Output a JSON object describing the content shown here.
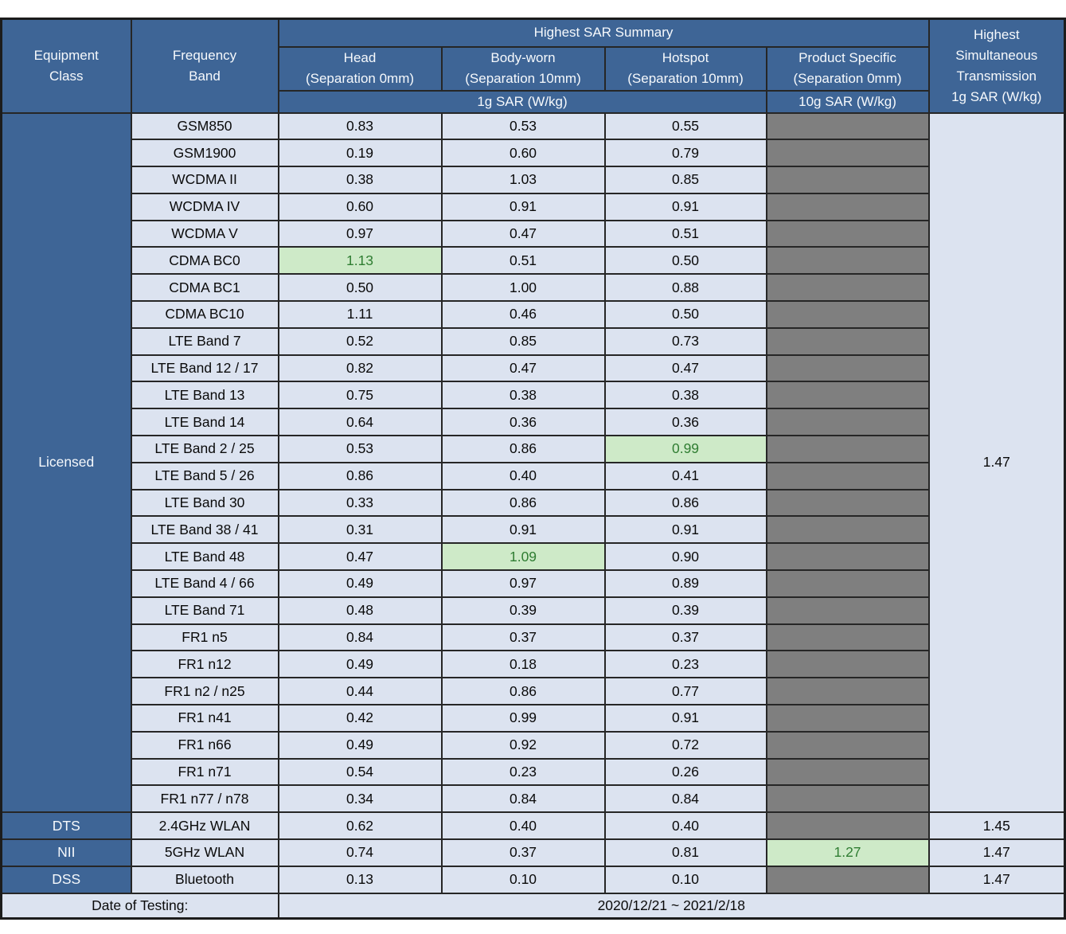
{
  "colors": {
    "header_blue": "#3E6596",
    "cell_light_blue": "#DCE3F0",
    "na_gray": "#7F7F7F",
    "highlight_green_bg": "#CEEAC8",
    "highlight_green_text": "#2F7D32"
  },
  "header": {
    "equipment_class": "Equipment\nClass",
    "frequency_band": "Frequency\nBand",
    "sar_summary": "Highest SAR Summary",
    "columns": [
      {
        "title": "Head",
        "separation": "(Separation 0mm)"
      },
      {
        "title": "Body-worn",
        "separation": "(Separation 10mm)"
      },
      {
        "title": "Hotspot",
        "separation": "(Separation 10mm)"
      },
      {
        "title": "Product Specific",
        "separation": "(Separation 0mm)"
      }
    ],
    "unit_1g": "1g SAR (W/kg)",
    "unit_10g": "10g SAR (W/kg)",
    "simultaneous_lines": [
      "Highest",
      "Simultaneous",
      "Transmission",
      "1g SAR (W/kg)"
    ]
  },
  "sections": [
    {
      "equipment_class": "Licensed",
      "simultaneous_sar": "1.47",
      "rows": [
        {
          "band": "GSM850",
          "values": {
            "head": "0.83",
            "body": "0.53",
            "hotspot": "0.55",
            "product": ""
          },
          "highlight": null
        },
        {
          "band": "GSM1900",
          "values": {
            "head": "0.19",
            "body": "0.60",
            "hotspot": "0.79",
            "product": ""
          },
          "highlight": null
        },
        {
          "band": "WCDMA II",
          "values": {
            "head": "0.38",
            "body": "1.03",
            "hotspot": "0.85",
            "product": ""
          },
          "highlight": null
        },
        {
          "band": "WCDMA IV",
          "values": {
            "head": "0.60",
            "body": "0.91",
            "hotspot": "0.91",
            "product": ""
          },
          "highlight": null
        },
        {
          "band": "WCDMA V",
          "values": {
            "head": "0.97",
            "body": "0.47",
            "hotspot": "0.51",
            "product": ""
          },
          "highlight": null
        },
        {
          "band": "CDMA BC0",
          "values": {
            "head": "1.13",
            "body": "0.51",
            "hotspot": "0.50",
            "product": ""
          },
          "highlight": "head"
        },
        {
          "band": "CDMA BC1",
          "values": {
            "head": "0.50",
            "body": "1.00",
            "hotspot": "0.88",
            "product": ""
          },
          "highlight": null
        },
        {
          "band": "CDMA BC10",
          "values": {
            "head": "1.11",
            "body": "0.46",
            "hotspot": "0.50",
            "product": ""
          },
          "highlight": null
        },
        {
          "band": "LTE Band 7",
          "values": {
            "head": "0.52",
            "body": "0.85",
            "hotspot": "0.73",
            "product": ""
          },
          "highlight": null
        },
        {
          "band": "LTE Band 12 / 17",
          "values": {
            "head": "0.82",
            "body": "0.47",
            "hotspot": "0.47",
            "product": ""
          },
          "highlight": null
        },
        {
          "band": "LTE Band 13",
          "values": {
            "head": "0.75",
            "body": "0.38",
            "hotspot": "0.38",
            "product": ""
          },
          "highlight": null
        },
        {
          "band": "LTE Band 14",
          "values": {
            "head": "0.64",
            "body": "0.36",
            "hotspot": "0.36",
            "product": ""
          },
          "highlight": null
        },
        {
          "band": "LTE Band 2 / 25",
          "values": {
            "head": "0.53",
            "body": "0.86",
            "hotspot": "0.99",
            "product": ""
          },
          "highlight": "hotspot"
        },
        {
          "band": "LTE Band 5 / 26",
          "values": {
            "head": "0.86",
            "body": "0.40",
            "hotspot": "0.41",
            "product": ""
          },
          "highlight": null
        },
        {
          "band": "LTE Band 30",
          "values": {
            "head": "0.33",
            "body": "0.86",
            "hotspot": "0.86",
            "product": ""
          },
          "highlight": null
        },
        {
          "band": "LTE Band 38 / 41",
          "values": {
            "head": "0.31",
            "body": "0.91",
            "hotspot": "0.91",
            "product": ""
          },
          "highlight": null
        },
        {
          "band": "LTE Band 48",
          "values": {
            "head": "0.47",
            "body": "1.09",
            "hotspot": "0.90",
            "product": ""
          },
          "highlight": "body"
        },
        {
          "band": "LTE Band 4 / 66",
          "values": {
            "head": "0.49",
            "body": "0.97",
            "hotspot": "0.89",
            "product": ""
          },
          "highlight": null
        },
        {
          "band": "LTE Band 71",
          "values": {
            "head": "0.48",
            "body": "0.39",
            "hotspot": "0.39",
            "product": ""
          },
          "highlight": null
        },
        {
          "band": "FR1 n5",
          "values": {
            "head": "0.84",
            "body": "0.37",
            "hotspot": "0.37",
            "product": ""
          },
          "highlight": null
        },
        {
          "band": "FR1 n12",
          "values": {
            "head": "0.49",
            "body": "0.18",
            "hotspot": "0.23",
            "product": ""
          },
          "highlight": null
        },
        {
          "band": "FR1 n2 / n25",
          "values": {
            "head": "0.44",
            "body": "0.86",
            "hotspot": "0.77",
            "product": ""
          },
          "highlight": null
        },
        {
          "band": "FR1 n41",
          "values": {
            "head": "0.42",
            "body": "0.99",
            "hotspot": "0.91",
            "product": ""
          },
          "highlight": null
        },
        {
          "band": "FR1 n66",
          "values": {
            "head": "0.49",
            "body": "0.92",
            "hotspot": "0.72",
            "product": ""
          },
          "highlight": null
        },
        {
          "band": "FR1 n71",
          "values": {
            "head": "0.54",
            "body": "0.23",
            "hotspot": "0.26",
            "product": ""
          },
          "highlight": null
        },
        {
          "band": "FR1 n77 / n78",
          "values": {
            "head": "0.34",
            "body": "0.84",
            "hotspot": "0.84",
            "product": ""
          },
          "highlight": null
        }
      ]
    },
    {
      "equipment_class": "DTS",
      "simultaneous_sar": "1.45",
      "rows": [
        {
          "band": "2.4GHz WLAN",
          "values": {
            "head": "0.62",
            "body": "0.40",
            "hotspot": "0.40",
            "product": ""
          },
          "highlight": null
        }
      ]
    },
    {
      "equipment_class": "NII",
      "simultaneous_sar": "1.47",
      "rows": [
        {
          "band": "5GHz WLAN",
          "values": {
            "head": "0.74",
            "body": "0.37",
            "hotspot": "0.81",
            "product": "1.27"
          },
          "highlight": "product"
        }
      ]
    },
    {
      "equipment_class": "DSS",
      "simultaneous_sar": "1.47",
      "rows": [
        {
          "band": "Bluetooth",
          "values": {
            "head": "0.13",
            "body": "0.10",
            "hotspot": "0.10",
            "product": ""
          },
          "highlight": null
        }
      ]
    }
  ],
  "footer": {
    "label": "Date of Testing:",
    "value": "2020/12/21 ~ 2021/2/18"
  }
}
